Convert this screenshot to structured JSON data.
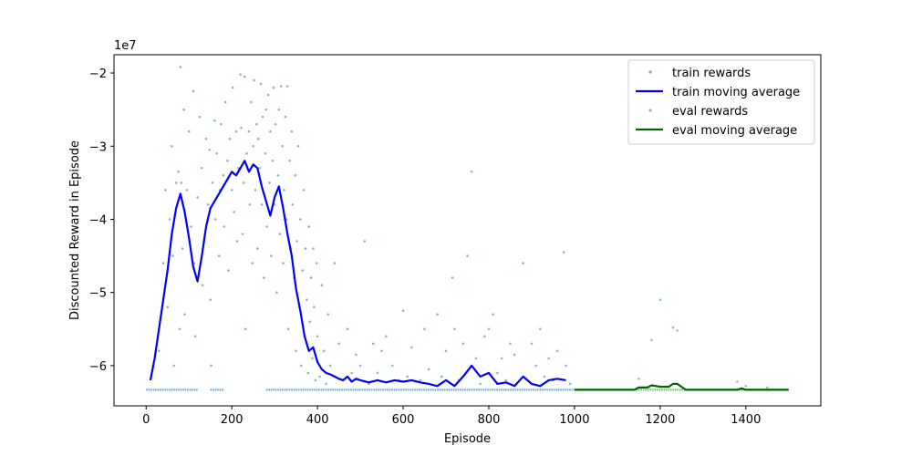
{
  "chart_data": {
    "type": "scatter",
    "title": "",
    "xlabel": "Episode",
    "ylabel": "Discounted Reward in Episode",
    "y_offset_text": "1e7",
    "xlim": [
      -75,
      1575
    ],
    "ylim": [
      -65500000,
      -17500000
    ],
    "x_ticks": [
      0,
      200,
      400,
      600,
      800,
      1000,
      1200,
      1400
    ],
    "x_tick_labels": [
      "0",
      "200",
      "400",
      "600",
      "800",
      "1000",
      "1200",
      "1400"
    ],
    "y_ticks": [
      -60000000,
      -50000000,
      -40000000,
      -30000000,
      -20000000
    ],
    "y_tick_labels": [
      "−6",
      "−5",
      "−4",
      "−3",
      "−2"
    ],
    "grid": false,
    "legend_position": "top-right",
    "baseline_reward": -63300000,
    "series": [
      {
        "name": "train rewards",
        "kind": "scatter",
        "color": "#1f77b4",
        "x_range": [
          0,
          1000
        ],
        "baseline_segments": [
          [
            0,
            120
          ],
          [
            150,
            180
          ],
          [
            280,
            1000
          ]
        ],
        "points": [
          [
            30,
            -58000000
          ],
          [
            40,
            -46000000
          ],
          [
            45,
            -36000000
          ],
          [
            50,
            -52000000
          ],
          [
            55,
            -40000000
          ],
          [
            60,
            -30000000
          ],
          [
            62,
            -45000000
          ],
          [
            65,
            -60000000
          ],
          [
            70,
            -35000000
          ],
          [
            75,
            -33500000
          ],
          [
            78,
            -55000000
          ],
          [
            80,
            -19200000
          ],
          [
            82,
            -35000000
          ],
          [
            85,
            -44000000
          ],
          [
            88,
            -25000000
          ],
          [
            90,
            -53000000
          ],
          [
            95,
            -36000000
          ],
          [
            100,
            -28000000
          ],
          [
            105,
            -41000000
          ],
          [
            110,
            -22500000
          ],
          [
            112,
            -46000000
          ],
          [
            115,
            -56000000
          ],
          [
            120,
            -37000000
          ],
          [
            125,
            -26000000
          ],
          [
            130,
            -33000000
          ],
          [
            132,
            -49000000
          ],
          [
            135,
            -43000000
          ],
          [
            140,
            -29000000
          ],
          [
            145,
            -38000000
          ],
          [
            148,
            -30500000
          ],
          [
            150,
            -51000000
          ],
          [
            152,
            -60000000
          ],
          [
            155,
            -35000000
          ],
          [
            160,
            -26500000
          ],
          [
            162,
            -40000000
          ],
          [
            165,
            -31000000
          ],
          [
            170,
            -45000000
          ],
          [
            172,
            -36000000
          ],
          [
            175,
            -27000000
          ],
          [
            180,
            -34000000
          ],
          [
            182,
            -41000000
          ],
          [
            185,
            -24000000
          ],
          [
            190,
            -32000000
          ],
          [
            192,
            -47000000
          ],
          [
            195,
            -29000000
          ],
          [
            200,
            -36000000
          ],
          [
            202,
            -22000000
          ],
          [
            205,
            -39000000
          ],
          [
            210,
            -28000000
          ],
          [
            212,
            -43000000
          ],
          [
            215,
            -33000000
          ],
          [
            220,
            -20200000
          ],
          [
            222,
            -27500000
          ],
          [
            225,
            -42000000
          ],
          [
            228,
            -35000000
          ],
          [
            230,
            -20500000
          ],
          [
            232,
            -55000000
          ],
          [
            235,
            -31000000
          ],
          [
            240,
            -28000000
          ],
          [
            242,
            -38000000
          ],
          [
            245,
            -24000000
          ],
          [
            248,
            -46000000
          ],
          [
            250,
            -30000000
          ],
          [
            252,
            -21000000
          ],
          [
            255,
            -36000000
          ],
          [
            258,
            -27000000
          ],
          [
            260,
            -44000000
          ],
          [
            262,
            -29000000
          ],
          [
            265,
            -33000000
          ],
          [
            268,
            -21500000
          ],
          [
            270,
            -38000000
          ],
          [
            272,
            -26000000
          ],
          [
            275,
            -48000000
          ],
          [
            278,
            -31000000
          ],
          [
            280,
            -25000000
          ],
          [
            282,
            -41000000
          ],
          [
            285,
            -23000000
          ],
          [
            288,
            -35000000
          ],
          [
            290,
            -28000000
          ],
          [
            292,
            -45000000
          ],
          [
            295,
            -32000000
          ],
          [
            298,
            -22000000
          ],
          [
            300,
            -38000000
          ],
          [
            302,
            -27000000
          ],
          [
            305,
            -50000000
          ],
          [
            308,
            -34000000
          ],
          [
            310,
            -25000000
          ],
          [
            312,
            -42000000
          ],
          [
            315,
            -21800000
          ],
          [
            318,
            -30000000
          ],
          [
            320,
            -46000000
          ],
          [
            322,
            -36000000
          ],
          [
            325,
            -26000000
          ],
          [
            328,
            -40000000
          ],
          [
            330,
            -21800000
          ],
          [
            332,
            -55000000
          ],
          [
            335,
            -32000000
          ],
          [
            338,
            -44000000
          ],
          [
            340,
            -28000000
          ],
          [
            342,
            -38000000
          ],
          [
            345,
            -48000000
          ],
          [
            348,
            -34000000
          ],
          [
            350,
            -58000000
          ],
          [
            352,
            -43000000
          ],
          [
            355,
            -30000000
          ],
          [
            358,
            -52000000
          ],
          [
            360,
            -40000000
          ],
          [
            362,
            -60000000
          ],
          [
            365,
            -47000000
          ],
          [
            368,
            -36000000
          ],
          [
            370,
            -56000000
          ],
          [
            372,
            -44000000
          ],
          [
            375,
            -51000000
          ],
          [
            378,
            -61000000
          ],
          [
            380,
            -41000000
          ],
          [
            382,
            -54000000
          ],
          [
            385,
            -48000000
          ],
          [
            388,
            -59000000
          ],
          [
            390,
            -44000000
          ],
          [
            392,
            -52000000
          ],
          [
            395,
            -62000000
          ],
          [
            398,
            -46000000
          ],
          [
            400,
            -56000000
          ],
          [
            405,
            -61500000
          ],
          [
            410,
            -49000000
          ],
          [
            415,
            -58000000
          ],
          [
            420,
            -62500000
          ],
          [
            425,
            -53000000
          ],
          [
            430,
            -60000000
          ],
          [
            440,
            -46000000
          ],
          [
            450,
            -57000000
          ],
          [
            460,
            -62000000
          ],
          [
            470,
            -55000000
          ],
          [
            480,
            -61000000
          ],
          [
            490,
            -58500000
          ],
          [
            500,
            -60000000
          ],
          [
            510,
            -43000000
          ],
          [
            520,
            -62500000
          ],
          [
            530,
            -57000000
          ],
          [
            540,
            -61000000
          ],
          [
            550,
            -58000000
          ],
          [
            560,
            -56000000
          ],
          [
            575,
            -60000000
          ],
          [
            590,
            -62000000
          ],
          [
            600,
            -52500000
          ],
          [
            610,
            -61500000
          ],
          [
            620,
            -57500000
          ],
          [
            640,
            -62000000
          ],
          [
            650,
            -55000000
          ],
          [
            660,
            -60500000
          ],
          [
            680,
            -53000000
          ],
          [
            690,
            -61500000
          ],
          [
            700,
            -58000000
          ],
          [
            715,
            -48000000
          ],
          [
            720,
            -55000000
          ],
          [
            730,
            -62000000
          ],
          [
            740,
            -57000000
          ],
          [
            750,
            -45000000
          ],
          [
            760,
            -33500000
          ],
          [
            770,
            -59000000
          ],
          [
            780,
            -62500000
          ],
          [
            790,
            -56000000
          ],
          [
            800,
            -55000000
          ],
          [
            810,
            -53000000
          ],
          [
            820,
            -61000000
          ],
          [
            830,
            -59000000
          ],
          [
            840,
            -62000000
          ],
          [
            850,
            -57000000
          ],
          [
            860,
            -58500000
          ],
          [
            880,
            -46000000
          ],
          [
            890,
            -62000000
          ],
          [
            900,
            -57000000
          ],
          [
            910,
            -60000000
          ],
          [
            920,
            -55000000
          ],
          [
            930,
            -61500000
          ],
          [
            940,
            -59000000
          ],
          [
            950,
            -62000000
          ],
          [
            960,
            -58000000
          ],
          [
            975,
            -44500000
          ],
          [
            980,
            -60000000
          ],
          [
            990,
            -62500000
          ]
        ]
      },
      {
        "name": "train moving average",
        "kind": "line",
        "color": "#0000ff",
        "x": [
          10,
          20,
          30,
          40,
          50,
          60,
          70,
          80,
          90,
          100,
          110,
          120,
          130,
          140,
          150,
          160,
          170,
          180,
          190,
          200,
          210,
          220,
          230,
          240,
          250,
          260,
          270,
          280,
          290,
          300,
          310,
          320,
          330,
          340,
          350,
          360,
          370,
          380,
          390,
          400,
          410,
          420,
          430,
          440,
          450,
          460,
          470,
          480,
          490,
          500,
          520,
          540,
          560,
          580,
          600,
          620,
          640,
          660,
          680,
          700,
          720,
          740,
          760,
          780,
          800,
          820,
          840,
          860,
          880,
          900,
          920,
          940,
          960,
          980
        ],
        "values": [
          -62000000,
          -59000000,
          -55000000,
          -51000000,
          -47000000,
          -42000000,
          -38500000,
          -36500000,
          -39000000,
          -42500000,
          -46500000,
          -48500000,
          -45000000,
          -41000000,
          -38500000,
          -37500000,
          -36500000,
          -35500000,
          -34500000,
          -33500000,
          -34000000,
          -33000000,
          -32000000,
          -33500000,
          -32500000,
          -33000000,
          -35500000,
          -37500000,
          -39500000,
          -37000000,
          -35500000,
          -38500000,
          -42000000,
          -45000000,
          -49500000,
          -52500000,
          -56000000,
          -58000000,
          -57500000,
          -59500000,
          -60500000,
          -61000000,
          -61200000,
          -61500000,
          -61800000,
          -62000000,
          -61500000,
          -62200000,
          -61800000,
          -62000000,
          -62300000,
          -62000000,
          -62300000,
          -62000000,
          -62200000,
          -62000000,
          -62300000,
          -62500000,
          -62800000,
          -62000000,
          -62800000,
          -61500000,
          -60000000,
          -61500000,
          -61000000,
          -62500000,
          -62300000,
          -62800000,
          -61500000,
          -62500000,
          -62800000,
          -62000000,
          -61800000,
          -62000000
        ]
      },
      {
        "name": "eval rewards",
        "kind": "scatter",
        "color": "#2ca02c",
        "x_range": [
          1000,
          1500
        ],
        "baseline_segments": [
          [
            1000,
            1500
          ]
        ],
        "points": [
          [
            1150,
            -61800000
          ],
          [
            1180,
            -56500000
          ],
          [
            1200,
            -51000000
          ],
          [
            1230,
            -54800000
          ],
          [
            1240,
            -55200000
          ],
          [
            1380,
            -62200000
          ],
          [
            1400,
            -62800000
          ],
          [
            1450,
            -63000000
          ]
        ]
      },
      {
        "name": "eval moving average",
        "kind": "line",
        "color": "#006400",
        "x": [
          1000,
          1140,
          1150,
          1170,
          1180,
          1200,
          1220,
          1230,
          1240,
          1250,
          1260,
          1380,
          1390,
          1400,
          1500
        ],
        "values": [
          -63300000,
          -63300000,
          -63000000,
          -63000000,
          -62700000,
          -62900000,
          -62900000,
          -62500000,
          -62500000,
          -62900000,
          -63300000,
          -63300000,
          -63100000,
          -63300000,
          -63300000
        ]
      }
    ]
  }
}
